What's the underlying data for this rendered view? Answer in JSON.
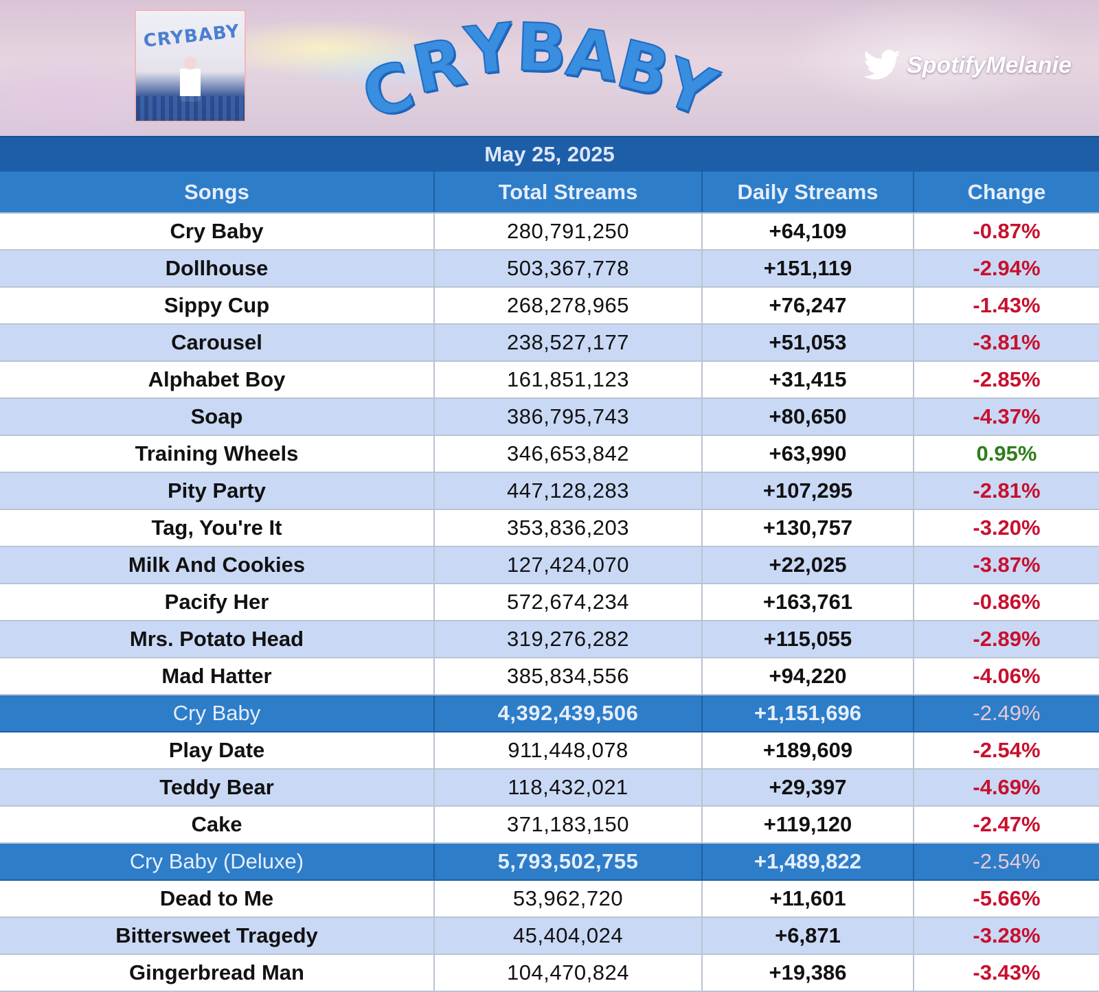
{
  "banner": {
    "album_cover_text": "CRYBABY",
    "title_letters": [
      "C",
      "R",
      "Y",
      "B",
      "A",
      "B",
      "Y"
    ],
    "handle": "SpotifyMelanie",
    "handle_icon": "twitter-bird-icon"
  },
  "date": "May 25, 2025",
  "table": {
    "headers": [
      "Songs",
      "Total Streams",
      "Daily Streams",
      "Change"
    ],
    "rows": [
      {
        "song": "Cry Baby",
        "total": "280,791,250",
        "daily": "+64,109",
        "change": "-0.87%",
        "type": "track"
      },
      {
        "song": "Dollhouse",
        "total": "503,367,778",
        "daily": "+151,119",
        "change": "-2.94%",
        "type": "track"
      },
      {
        "song": "Sippy Cup",
        "total": "268,278,965",
        "daily": "+76,247",
        "change": "-1.43%",
        "type": "track"
      },
      {
        "song": "Carousel",
        "total": "238,527,177",
        "daily": "+51,053",
        "change": "-3.81%",
        "type": "track"
      },
      {
        "song": "Alphabet Boy",
        "total": "161,851,123",
        "daily": "+31,415",
        "change": "-2.85%",
        "type": "track"
      },
      {
        "song": "Soap",
        "total": "386,795,743",
        "daily": "+80,650",
        "change": "-4.37%",
        "type": "track"
      },
      {
        "song": "Training Wheels",
        "total": "346,653,842",
        "daily": "+63,990",
        "change": "0.95%",
        "type": "track"
      },
      {
        "song": "Pity Party",
        "total": "447,128,283",
        "daily": "+107,295",
        "change": "-2.81%",
        "type": "track"
      },
      {
        "song": "Tag, You're It",
        "total": "353,836,203",
        "daily": "+130,757",
        "change": "-3.20%",
        "type": "track"
      },
      {
        "song": "Milk And Cookies",
        "total": "127,424,070",
        "daily": "+22,025",
        "change": "-3.87%",
        "type": "track"
      },
      {
        "song": "Pacify Her",
        "total": "572,674,234",
        "daily": "+163,761",
        "change": "-0.86%",
        "type": "track"
      },
      {
        "song": "Mrs. Potato Head",
        "total": "319,276,282",
        "daily": "+115,055",
        "change": "-2.89%",
        "type": "track"
      },
      {
        "song": "Mad Hatter",
        "total": "385,834,556",
        "daily": "+94,220",
        "change": "-4.06%",
        "type": "track"
      },
      {
        "song": "Cry Baby",
        "total": "4,392,439,506",
        "daily": "+1,151,696",
        "change": "-2.49%",
        "type": "subtotal"
      },
      {
        "song": "Play Date",
        "total": "911,448,078",
        "daily": "+189,609",
        "change": "-2.54%",
        "type": "track"
      },
      {
        "song": "Teddy Bear",
        "total": "118,432,021",
        "daily": "+29,397",
        "change": "-4.69%",
        "type": "track"
      },
      {
        "song": "Cake",
        "total": "371,183,150",
        "daily": "+119,120",
        "change": "-2.47%",
        "type": "track"
      },
      {
        "song": "Cry Baby (Deluxe)",
        "total": "5,793,502,755",
        "daily": "+1,489,822",
        "change": "-2.54%",
        "type": "subtotal"
      },
      {
        "song": "Dead to Me",
        "total": "53,962,720",
        "daily": "+11,601",
        "change": "-5.66%",
        "type": "track"
      },
      {
        "song": "Bittersweet Tragedy",
        "total": "45,404,024",
        "daily": "+6,871",
        "change": "-3.28%",
        "type": "track"
      },
      {
        "song": "Gingerbread Man",
        "total": "104,470,824",
        "daily": "+19,386",
        "change": "-3.43%",
        "type": "track"
      }
    ]
  },
  "colors": {
    "header_blue": "#2d7dc9",
    "date_bar_blue": "#1d5ea8",
    "row_alt": "#c9d9f5",
    "negative": "#c8102e",
    "positive": "#2e7d1a"
  }
}
